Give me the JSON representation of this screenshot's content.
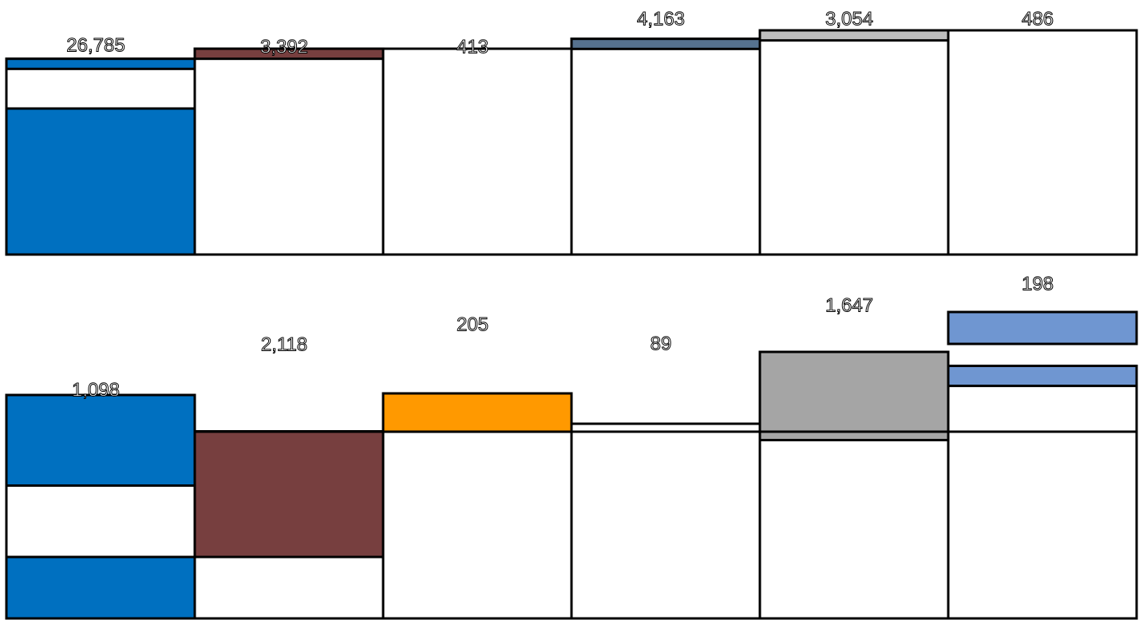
{
  "chart_data": {
    "type": "bar",
    "title": "",
    "xlabel": "",
    "ylabel": "",
    "ylim": [
      0,
      100
    ],
    "categories": [
      "",
      "",
      "",
      "",
      "",
      ""
    ],
    "groups": [
      {
        "name": "",
        "series": [
          {
            "label": "26,785",
            "value": 26785,
            "height_pct": 4.5,
            "color": "#0070C0"
          },
          {
            "label": "3,392",
            "value": 3392,
            "height_pct": 4.5,
            "color": "#773F3F"
          },
          {
            "label": "413",
            "value": 413,
            "height_pct": 0,
            "color": "#FFFFFF"
          },
          {
            "label": "4,163",
            "value": 4163,
            "height_pct": 4.5,
            "color": "#56728F"
          },
          {
            "label": "3,054",
            "value": 3054,
            "height_pct": 4.5,
            "color": "#BFBFBF"
          },
          {
            "label": "486",
            "value": 486,
            "height_pct": 0,
            "color": "#FFFFFF"
          }
        ]
      },
      {
        "name": "",
        "series": [
          {
            "label": "1,098",
            "value": 1098,
            "height_pct": 24.9,
            "color": "#0070C0"
          },
          {
            "label": "2,118",
            "value": 2118,
            "height_pct": 21.1,
            "color": "#773F3F"
          },
          {
            "label": "205",
            "value": 205,
            "height_pct": 6.6,
            "color": "#FF9900"
          },
          {
            "label": "89",
            "value": 89,
            "height_pct": 0,
            "color": "#FFFFFF"
          },
          {
            "label": "1,647",
            "value": 1647,
            "height_pct": 13.6,
            "color": "#A5A5A5"
          },
          {
            "label": "198",
            "value": 198,
            "height_pct": 5.5,
            "color": "#6F96D1"
          }
        ]
      }
    ],
    "column_tops_pct": [
      [
        87.3,
        91.8,
        91.8,
        96.2,
        100,
        100
      ],
      [
        61.4,
        51.4,
        57.9,
        53.5,
        62.6,
        69.4
      ]
    ]
  }
}
